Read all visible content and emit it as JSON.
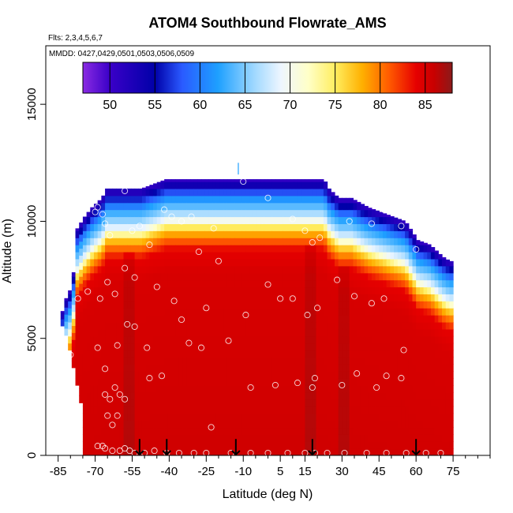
{
  "chart_data": {
    "type": "heatmap",
    "title": "ATOM4 Southbound Flowrate_AMS",
    "flights_label": "Flts: 2,3,4,5,6,7",
    "dates_label": "MMDD: 0427,0429,0501,0503,0506,0509",
    "xlabel": "Latitude (deg N)",
    "ylabel": "Altitude (m)",
    "xlim": [
      -90,
      90
    ],
    "ylim": [
      0,
      17500
    ],
    "x_ticks": [
      -85,
      -70,
      -55,
      -40,
      -25,
      -10,
      5,
      15,
      30,
      45,
      60,
      75
    ],
    "x_minor_ticks": [
      -80,
      -75,
      -65,
      -60,
      -50,
      -45,
      -35,
      -30,
      -20,
      -15,
      -5,
      0,
      10,
      20,
      25,
      35,
      40,
      50,
      55,
      65,
      70,
      80,
      85,
      90
    ],
    "y_ticks": [
      0,
      5000,
      10000,
      15000
    ],
    "colorbar": {
      "min": 47,
      "max": 88,
      "tick_values": [
        50,
        55,
        60,
        65,
        70,
        75,
        80,
        85
      ],
      "stops": [
        {
          "v": 47,
          "c": "#8a2be2"
        },
        {
          "v": 50,
          "c": "#3a00c8"
        },
        {
          "v": 55,
          "c": "#0000a8"
        },
        {
          "v": 58,
          "c": "#2a5aff"
        },
        {
          "v": 62,
          "c": "#1ea0ff"
        },
        {
          "v": 66,
          "c": "#9fd8ff"
        },
        {
          "v": 69,
          "c": "#eef6ff"
        },
        {
          "v": 72,
          "c": "#ffffc8"
        },
        {
          "v": 75,
          "c": "#ffee60"
        },
        {
          "v": 78,
          "c": "#ffb000"
        },
        {
          "v": 81,
          "c": "#ff5a00"
        },
        {
          "v": 84,
          "c": "#e60000"
        },
        {
          "v": 86,
          "c": "#c80000"
        },
        {
          "v": 88,
          "c": "#8b1a1a"
        }
      ]
    },
    "field": {
      "bottom_value": 85,
      "top_profile": [
        [
          -85,
          5800
        ],
        [
          -82,
          6900
        ],
        [
          -80,
          7200
        ],
        [
          -78,
          9700
        ],
        [
          -75,
          10200
        ],
        [
          -72,
          10600
        ],
        [
          -68,
          11000
        ],
        [
          -66,
          11400
        ],
        [
          -56,
          11400
        ],
        [
          -52,
          11400
        ],
        [
          -42,
          11800
        ],
        [
          -25,
          11800
        ],
        [
          -10,
          11800
        ],
        [
          0,
          11800
        ],
        [
          15,
          11800
        ],
        [
          22,
          11800
        ],
        [
          24,
          11400
        ],
        [
          28,
          11000
        ],
        [
          33,
          11000
        ],
        [
          40,
          10600
        ],
        [
          50,
          10200
        ],
        [
          55,
          10000
        ],
        [
          60,
          9200
        ],
        [
          65,
          9000
        ],
        [
          70,
          8500
        ],
        [
          73,
          8300
        ]
      ],
      "bottom_left_edge": [
        [
          -85,
          5800
        ],
        [
          -82,
          5000
        ],
        [
          -80,
          4000
        ],
        [
          -78,
          3000
        ],
        [
          -76,
          2000
        ],
        [
          -75,
          0
        ]
      ],
      "value_by_depth": [
        [
          0,
          50
        ],
        [
          500,
          57
        ],
        [
          900,
          62
        ],
        [
          1300,
          65
        ],
        [
          1700,
          69
        ],
        [
          2100,
          76
        ],
        [
          2500,
          80
        ],
        [
          3000,
          84
        ],
        [
          4000,
          85
        ],
        [
          20000,
          86
        ]
      ],
      "darker_lanes": [
        -57,
        17,
        30
      ]
    },
    "samples": [
      [
        -86,
        5600
      ],
      [
        -77,
        6700
      ],
      [
        -73,
        7000
      ],
      [
        -68,
        6700
      ],
      [
        -65,
        7400
      ],
      [
        -62,
        6900
      ],
      [
        -58,
        8000
      ],
      [
        -54,
        7600
      ],
      [
        -48,
        9000
      ],
      [
        -45,
        7200
      ],
      [
        -70,
        10400
      ],
      [
        -69,
        10600
      ],
      [
        -67,
        10300
      ],
      [
        -66,
        9900
      ],
      [
        -64,
        9400
      ],
      [
        -58,
        11300
      ],
      [
        -55,
        9600
      ],
      [
        -52,
        9800
      ],
      [
        -42,
        10500
      ],
      [
        -39,
        10200
      ],
      [
        -35,
        10000
      ],
      [
        -31,
        10200
      ],
      [
        -22,
        9700
      ],
      [
        -28,
        8700
      ],
      [
        -20,
        8300
      ],
      [
        -10,
        11700
      ],
      [
        0,
        11000
      ],
      [
        10,
        10100
      ],
      [
        15,
        9600
      ],
      [
        18,
        9100
      ],
      [
        21,
        9300
      ],
      [
        33,
        10000
      ],
      [
        42,
        9900
      ],
      [
        47,
        10500
      ],
      [
        54,
        9800
      ],
      [
        60,
        8800
      ],
      [
        -80,
        4300
      ],
      [
        -69,
        4600
      ],
      [
        -66,
        3700
      ],
      [
        -61,
        4700
      ],
      [
        -57,
        5600
      ],
      [
        -54,
        5500
      ],
      [
        -49,
        4600
      ],
      [
        -48,
        3300
      ],
      [
        -43,
        3400
      ],
      [
        -38,
        6600
      ],
      [
        -35,
        5800
      ],
      [
        -32,
        4800
      ],
      [
        -27,
        4600
      ],
      [
        -25,
        6300
      ],
      [
        -16,
        4900
      ],
      [
        -9,
        6000
      ],
      [
        0,
        7300
      ],
      [
        5,
        6700
      ],
      [
        10,
        6700
      ],
      [
        16,
        6000
      ],
      [
        20,
        6300
      ],
      [
        28,
        7500
      ],
      [
        35,
        6800
      ],
      [
        42,
        6500
      ],
      [
        47,
        6700
      ],
      [
        55,
        4500
      ],
      [
        48,
        3400
      ],
      [
        54,
        3300
      ],
      [
        44,
        2900
      ],
      [
        36,
        3500
      ],
      [
        30,
        3000
      ],
      [
        18,
        2900
      ],
      [
        19,
        3300
      ],
      [
        12,
        3100
      ],
      [
        3,
        3000
      ],
      [
        -7,
        2900
      ],
      [
        -66,
        2600
      ],
      [
        -64,
        2400
      ],
      [
        -62,
        2900
      ],
      [
        -60,
        2600
      ],
      [
        -58,
        2400
      ],
      [
        -65,
        1700
      ],
      [
        -63,
        1300
      ],
      [
        -61,
        1700
      ],
      [
        -23,
        1200
      ],
      [
        -69,
        400
      ],
      [
        -67,
        400
      ],
      [
        -66,
        300
      ],
      [
        -63,
        200
      ],
      [
        -60,
        200
      ],
      [
        -58,
        300
      ],
      [
        -56,
        200
      ],
      [
        -54,
        100
      ],
      [
        -50,
        100
      ],
      [
        -46,
        200
      ],
      [
        -41,
        100
      ],
      [
        -36,
        100
      ],
      [
        -30,
        100
      ],
      [
        -25,
        100
      ],
      [
        -15,
        100
      ],
      [
        -7,
        100
      ],
      [
        0,
        100
      ],
      [
        8,
        100
      ],
      [
        15,
        100
      ],
      [
        19,
        100
      ],
      [
        24,
        100
      ],
      [
        31,
        100
      ],
      [
        40,
        100
      ],
      [
        48,
        100
      ],
      [
        56,
        100
      ],
      [
        64,
        100
      ],
      [
        70,
        100
      ]
    ],
    "arrows": [
      -52,
      -41,
      -13,
      18,
      60
    ]
  }
}
